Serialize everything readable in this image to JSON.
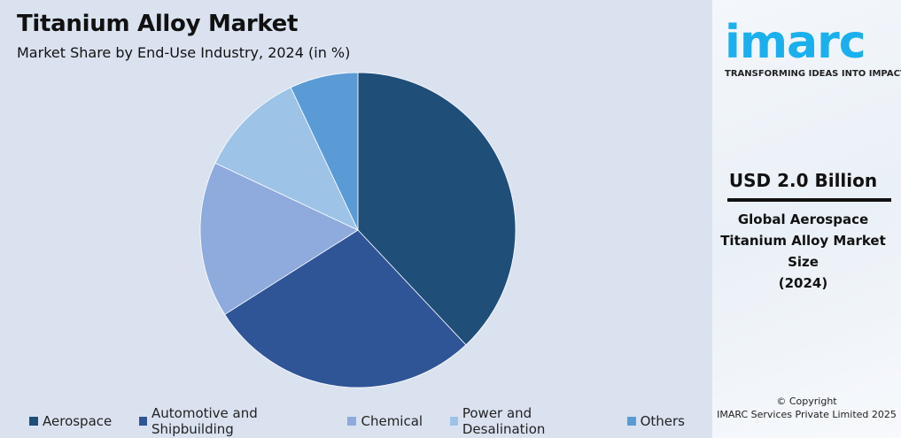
{
  "chart_data": {
    "type": "pie",
    "title": "Titanium Alloy Market",
    "subtitle": "Market Share by End-Use Industry, 2024 (in %)",
    "categories": [
      "Aerospace",
      "Automotive and Shipbuilding",
      "Chemical",
      "Power and Desalination",
      "Others"
    ],
    "values": [
      38,
      28,
      16,
      11,
      7
    ],
    "colors": [
      "#1f4e79",
      "#2f5597",
      "#8faadc",
      "#9dc3e6",
      "#5b9bd5"
    ],
    "legend_position": "bottom"
  },
  "side": {
    "logo": "imarc",
    "tagline": "TRANSFORMING IDEAS INTO IMPACT",
    "value": "USD 2.0 Billion",
    "description_lines": [
      "Global Aerospace",
      "Titanium Alloy Market",
      "Size",
      "(2024)"
    ],
    "copyright_lines": [
      "© Copyright",
      "IMARC Services Private Limited 2025"
    ]
  }
}
